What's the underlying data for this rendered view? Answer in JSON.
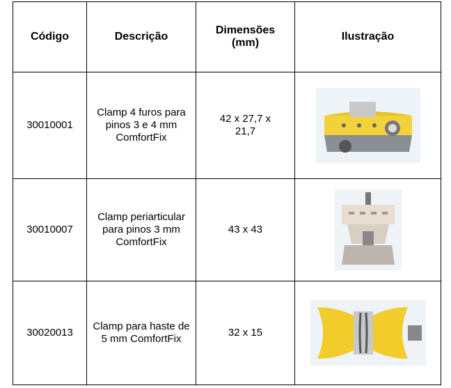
{
  "table": {
    "headers": [
      "Código",
      "Descrição",
      "Dimensões (mm)",
      "Ilustração"
    ],
    "rows": [
      [
        "30010001",
        "Clamp 4 furos para pinos 3 e 4 mm ComfortFix",
        "42 x 27,7 x 21,7"
      ],
      [
        "30010007",
        "Clamp periarticular para pinos 3 mm ComfortFix",
        "43 x 43"
      ],
      [
        "30020013",
        "Clamp para haste de 5 mm ComfortFix",
        "32 x 15"
      ]
    ]
  }
}
